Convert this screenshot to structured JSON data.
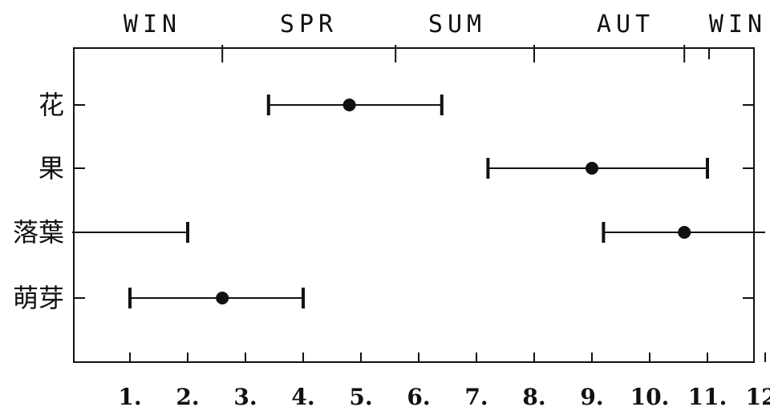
{
  "chart_data": {
    "type": "range",
    "title": "",
    "seasons": [
      "WIN",
      "SPR",
      "SUM",
      "AUT",
      "WIN"
    ],
    "month_labels": [
      "1.",
      "2.",
      "3.",
      "4.",
      "5.",
      "6.",
      "7.",
      "8.",
      "9.",
      "10.",
      "11.",
      "12."
    ],
    "xlim": [
      0,
      12
    ],
    "season_boundaries": [
      2.6,
      5.6,
      8.0,
      10.6
    ],
    "categories": [
      "花",
      "果",
      "落葉",
      "萌芽"
    ],
    "series": [
      {
        "label": "花",
        "start": 3.4,
        "peak": 4.8,
        "end": 6.4
      },
      {
        "label": "果",
        "start": 7.2,
        "peak": 9.0,
        "end": 11.0
      },
      {
        "label": "落葉",
        "start": 9.2,
        "peak": 10.6,
        "end": 12.0
      },
      {
        "label": "落葉",
        "start": 0.0,
        "peak": null,
        "end": 2.0
      },
      {
        "label": "萌芽",
        "start": 1.0,
        "peak": 2.6,
        "end": 4.0
      }
    ],
    "colors": {
      "ink": "#111111",
      "background": "#ffffff"
    }
  }
}
